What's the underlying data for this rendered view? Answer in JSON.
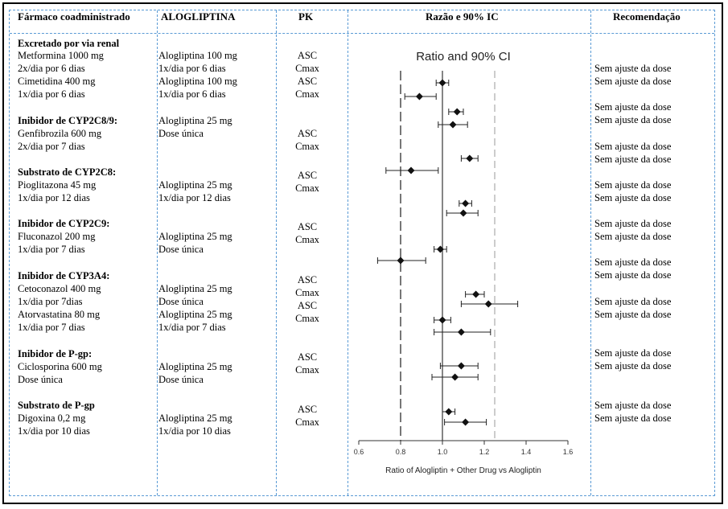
{
  "headers": {
    "col1": "Fármaco coadministrado",
    "col2": "ALOGLIPTINA",
    "col3": "PK",
    "col4": "Razão e 90% IC",
    "col5": "Recomendação"
  },
  "groups": [
    {
      "title": "Excretado por via renal",
      "rows": [
        {
          "drug": "Metformina 1000 mg",
          "alo": "Alogliptina 100 mg",
          "pk": "ASC",
          "rec": "Sem ajuste da dose"
        },
        {
          "drug": "2x/dia por 6 dias",
          "alo": "1x/dia por 6 dias",
          "pk": "Cmax",
          "rec": "Sem ajuste da dose"
        },
        {
          "drug": "Cimetidina 400 mg",
          "alo": "Alogliptina 100 mg",
          "pk": "ASC",
          "rec": ""
        },
        {
          "drug": "1x/dia por 6 dias",
          "alo": "1x/dia por 6 dias",
          "pk": "Cmax",
          "rec": ""
        }
      ]
    },
    {
      "title": "Inibidor de CYP2C8/9:",
      "rows": [
        {
          "drug": "Genfibrozila 600 mg",
          "alo": "Alogliptina 25 mg",
          "pk": "ASC",
          "rec": "Sem ajuste da dose"
        },
        {
          "drug": "2x/dia por 7 dias",
          "alo": "Dose única",
          "pk": "Cmax",
          "rec": "Sem ajuste da dose"
        }
      ]
    },
    {
      "title": "Substrato de CYP2C8:",
      "rows": [
        {
          "drug": "Pioglitazona 45 mg",
          "alo": "Alogliptina 25 mg",
          "pk": "ASC",
          "rec": "Sem ajuste da dose"
        },
        {
          "drug": "1x/dia por 12 dias",
          "alo": "1x/dia por 12 dias",
          "pk": "Cmax",
          "rec": "Sem ajuste da dose"
        }
      ]
    },
    {
      "title": "Inibidor de CYP2C9:",
      "rows": [
        {
          "drug": "Fluconazol 200 mg",
          "alo": "Alogliptina 25 mg",
          "pk": "ASC",
          "rec": "Sem ajuste da dose"
        },
        {
          "drug": "1x/dia por 7 dias",
          "alo": "Dose única",
          "pk": "Cmax",
          "rec": "Sem ajuste da dose"
        }
      ]
    },
    {
      "title": "Inibidor de CYP3A4:",
      "rows": [
        {
          "drug": "Cetoconazol 400 mg",
          "alo": "Alogliptina 25 mg",
          "pk": "ASC",
          "rec": "Sem ajuste da dose"
        },
        {
          "drug": "1x/dia por 7dias",
          "alo": "Dose única",
          "pk": "Cmax",
          "rec": "Sem ajuste da dose"
        },
        {
          "drug": "Atorvastatina 80 mg",
          "alo": "Alogliptina 25 mg",
          "pk": "ASC",
          "rec": "Sem ajuste da dose"
        },
        {
          "drug": "1x/dia por 7 dias",
          "alo": "1x/dia por 7 dias",
          "pk": "Cmax",
          "rec": "Sem ajuste da dose"
        }
      ]
    },
    {
      "title": "Inibidor de P-gp:",
      "rows": [
        {
          "drug": "Ciclosporina 600 mg",
          "alo": "Alogliptina 25 mg",
          "pk": "ASC",
          "rec": "Sem ajuste da dose"
        },
        {
          "drug": "Dose única",
          "alo": "Dose única",
          "pk": "Cmax",
          "rec": "Sem ajuste da dose"
        }
      ]
    },
    {
      "title": "Substrato de P-gp",
      "rows": [
        {
          "drug": "Digoxina 0,2 mg",
          "alo": "Alogliptina 25 mg",
          "pk": "ASC",
          "rec": "Sem ajuste da dose"
        },
        {
          "drug": "1x/dia por 10 dias",
          "alo": "1x/dia por 10 dias",
          "pk": "Cmax",
          "rec": "Sem ajuste da dose"
        }
      ]
    }
  ],
  "extra_recommendations": [
    "Sem ajuste da dose",
    "Sem ajuste da dose",
    "Sem ajuste da dose",
    "Sem ajuste da dose",
    "Sem ajuste da dose",
    "Sem ajuste da dose"
  ],
  "chart_data": {
    "type": "scatter",
    "title": "Ratio and 90% CI",
    "xlabel": "Ratio of Alogliptin + Other Drug vs Alogliptin",
    "xlim": [
      0.6,
      1.6
    ],
    "xticks": [
      "0.6",
      "0.8",
      "1.0",
      "1.2",
      "1.4",
      "1.6"
    ],
    "reference_lines": [
      0.8,
      1.0,
      1.25
    ],
    "points": [
      {
        "est": 1.0,
        "lo": 0.97,
        "hi": 1.03
      },
      {
        "est": 0.89,
        "lo": 0.82,
        "hi": 0.97
      },
      {
        "est": 1.07,
        "lo": 1.03,
        "hi": 1.1
      },
      {
        "est": 1.05,
        "lo": 0.98,
        "hi": 1.12
      },
      {
        "est": 1.13,
        "lo": 1.09,
        "hi": 1.17
      },
      {
        "est": 0.85,
        "lo": 0.73,
        "hi": 0.98
      },
      {
        "est": 1.11,
        "lo": 1.08,
        "hi": 1.14
      },
      {
        "est": 1.1,
        "lo": 1.02,
        "hi": 1.17
      },
      {
        "est": 0.99,
        "lo": 0.96,
        "hi": 1.02
      },
      {
        "est": 0.8,
        "lo": 0.69,
        "hi": 0.92
      },
      {
        "est": 1.16,
        "lo": 1.11,
        "hi": 1.2
      },
      {
        "est": 1.22,
        "lo": 1.09,
        "hi": 1.36
      },
      {
        "est": 1.0,
        "lo": 0.96,
        "hi": 1.04
      },
      {
        "est": 1.09,
        "lo": 0.96,
        "hi": 1.23
      },
      {
        "est": 1.09,
        "lo": 0.99,
        "hi": 1.17
      },
      {
        "est": 1.06,
        "lo": 0.95,
        "hi": 1.17
      },
      {
        "est": 1.03,
        "lo": 1.0,
        "hi": 1.06
      },
      {
        "est": 1.11,
        "lo": 1.01,
        "hi": 1.21
      }
    ]
  }
}
